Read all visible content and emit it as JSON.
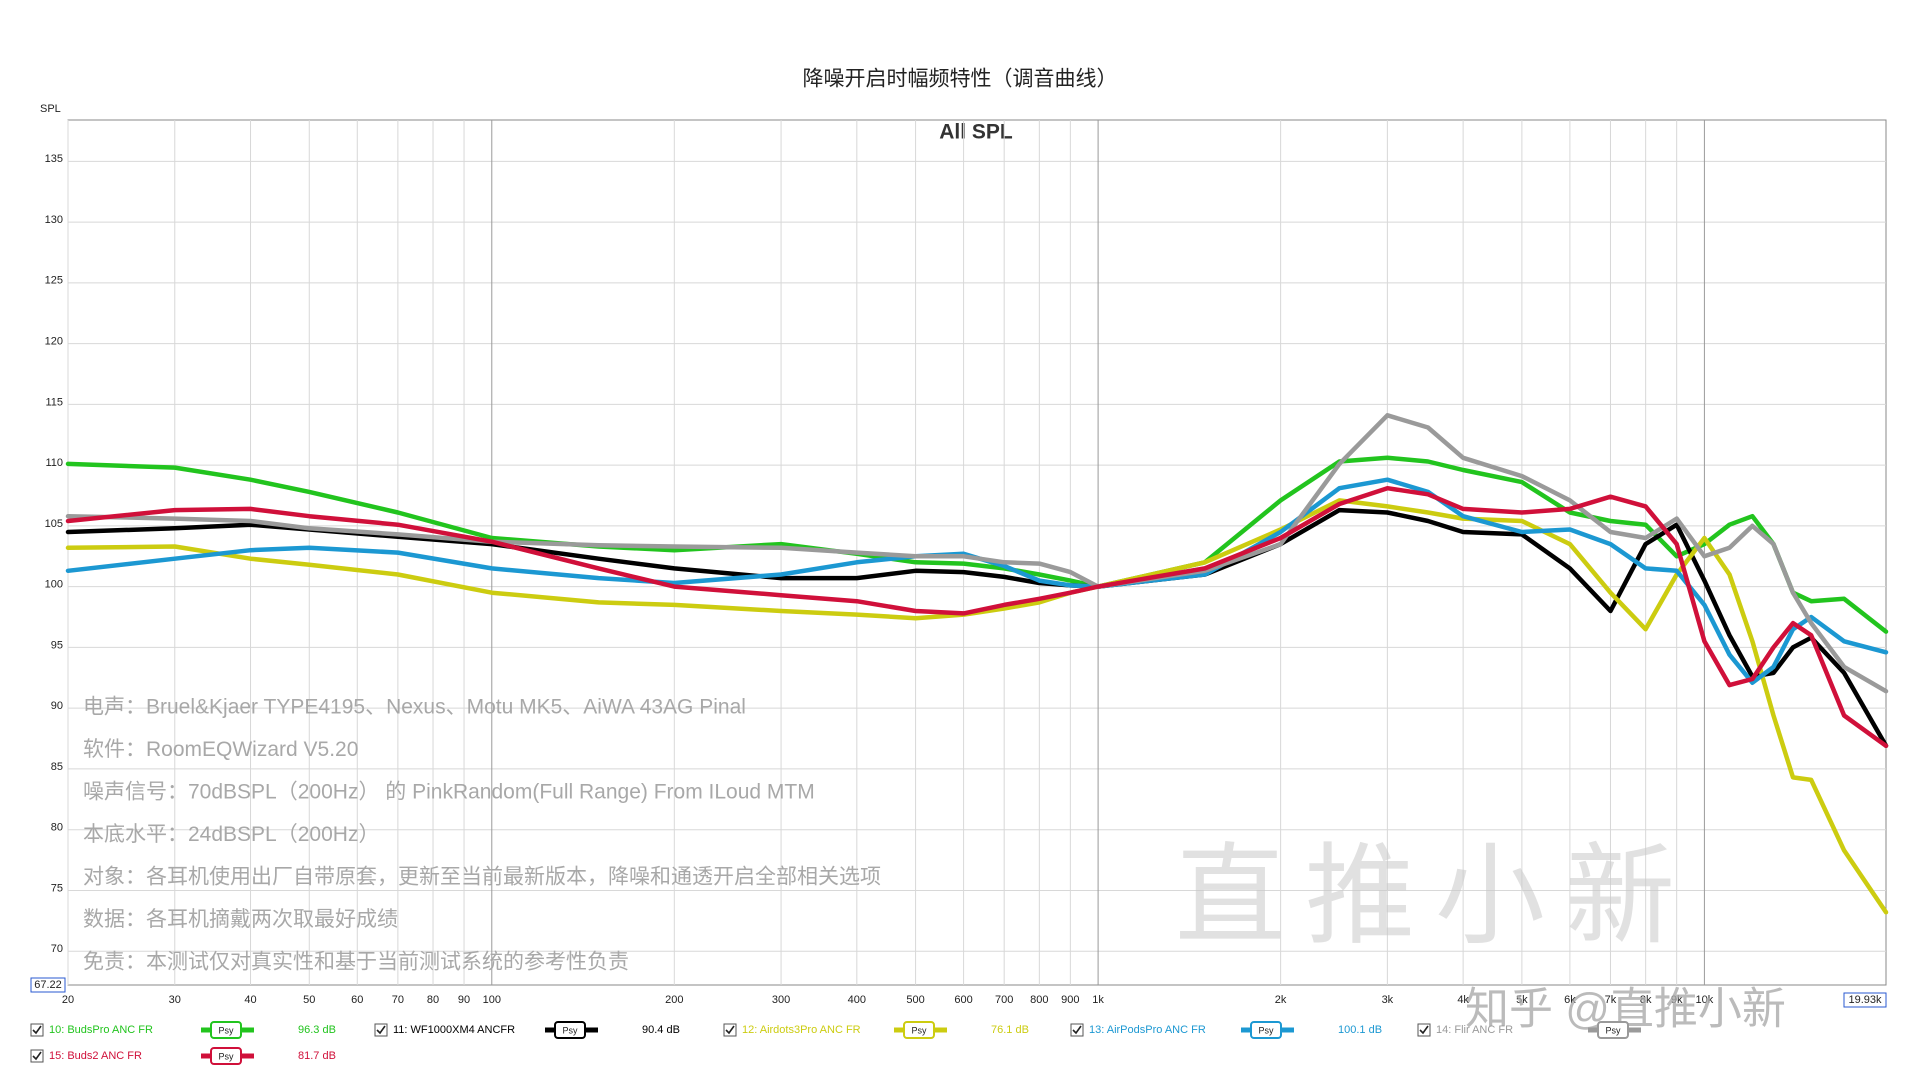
{
  "chart_data": {
    "type": "line",
    "title": "降噪开启时幅频特性（调音曲线）",
    "subtitle": "All SPL",
    "y_label": "SPL",
    "log_x": true,
    "grid": true,
    "xlim": [
      20,
      19930
    ],
    "ylim": [
      67.22,
      138.4
    ],
    "xticks": [
      20,
      30,
      40,
      50,
      60,
      70,
      80,
      90,
      100,
      200,
      300,
      400,
      500,
      600,
      700,
      800,
      900,
      {
        "value": 1000,
        "label": "1k"
      },
      {
        "value": 2000,
        "label": "2k"
      },
      {
        "value": 3000,
        "label": "3k"
      },
      {
        "value": 4000,
        "label": "4k"
      },
      {
        "value": 5000,
        "label": "5k"
      },
      {
        "value": 6000,
        "label": "6k"
      },
      {
        "value": 7000,
        "label": "7k"
      },
      {
        "value": 8000,
        "label": "8k"
      },
      {
        "value": 9000,
        "label": "9k"
      },
      {
        "value": 10000,
        "label": "10k"
      },
      {
        "value": 19930,
        "label": "19.93k"
      }
    ],
    "yticks": [
      67.22,
      70,
      75,
      80,
      85,
      90,
      95,
      100,
      105,
      110,
      115,
      120,
      125,
      130,
      135
    ],
    "x": [
      20,
      30,
      40,
      50,
      70,
      100,
      150,
      200,
      300,
      400,
      500,
      600,
      700,
      800,
      900,
      1000,
      1500,
      2000,
      2500,
      3000,
      3500,
      4000,
      5000,
      6000,
      7000,
      8000,
      9000,
      10000,
      11000,
      12000,
      13000,
      14000,
      15000,
      17000,
      19930
    ],
    "series": [
      {
        "name": "10: BudsPro ANC FR",
        "color": "#22c41e",
        "level": "96.3 dB",
        "values": [
          110.1,
          109.8,
          108.8,
          107.8,
          106.1,
          104.0,
          103.3,
          103.0,
          103.5,
          102.7,
          102.0,
          101.9,
          101.5,
          101.0,
          100.5,
          100.0,
          102.0,
          107.1,
          110.3,
          110.6,
          110.3,
          109.6,
          108.6,
          106.1,
          105.4,
          105.1,
          102.5,
          103.5,
          105.1,
          105.8,
          103.5,
          99.5,
          98.8,
          99.0,
          96.3
        ]
      },
      {
        "name": "11: WF1000XM4 ANCFR",
        "color": "#000000",
        "level": "90.4 dB",
        "values": [
          104.5,
          104.8,
          105.1,
          104.7,
          104.1,
          103.5,
          102.3,
          101.5,
          100.7,
          100.7,
          101.3,
          101.2,
          100.8,
          100.3,
          100.1,
          100.0,
          101.0,
          103.5,
          106.3,
          106.1,
          105.4,
          104.5,
          104.3,
          101.5,
          98.0,
          103.5,
          105.1,
          100.5,
          96.0,
          92.6,
          92.9,
          95.0,
          95.8,
          92.9,
          86.9
        ]
      },
      {
        "name": "12: Airdots3Pro ANC FR",
        "color": "#cccc10",
        "level": "76.1 dB",
        "values": [
          103.2,
          103.3,
          102.3,
          101.8,
          101.0,
          99.5,
          98.7,
          98.5,
          98.0,
          97.7,
          97.4,
          97.7,
          98.2,
          98.7,
          99.5,
          100.0,
          102.0,
          104.7,
          107.1,
          106.6,
          106.1,
          105.6,
          105.4,
          103.5,
          99.5,
          96.5,
          101.0,
          104.0,
          101.0,
          95.5,
          89.4,
          84.3,
          84.1,
          78.3,
          73.2
        ]
      },
      {
        "name": "13: AirPodsPro ANC FR",
        "color": "#1c98d2",
        "level": "100.1 dB",
        "values": [
          101.3,
          102.3,
          103.0,
          103.2,
          102.8,
          101.5,
          100.7,
          100.3,
          101.0,
          102.0,
          102.5,
          102.7,
          101.7,
          100.5,
          100.1,
          100.0,
          101.0,
          104.5,
          108.1,
          108.8,
          107.8,
          105.8,
          104.5,
          104.7,
          103.5,
          101.5,
          101.3,
          98.5,
          94.4,
          92.1,
          93.4,
          96.5,
          97.5,
          95.5,
          94.6
        ]
      },
      {
        "name": "14: Flir ANC FR",
        "color": "#9a9a9a",
        "values": [
          105.8,
          105.6,
          105.4,
          104.8,
          104.3,
          103.7,
          103.4,
          103.3,
          103.2,
          102.8,
          102.5,
          102.5,
          102.0,
          101.9,
          101.2,
          100.0,
          101.3,
          103.5,
          110.1,
          114.1,
          113.1,
          110.6,
          109.1,
          107.1,
          104.5,
          104.0,
          105.6,
          102.5,
          103.2,
          105.0,
          103.5,
          99.5,
          97.0,
          93.4,
          91.4
        ]
      },
      {
        "name": "15: Buds2 ANC FR",
        "color": "#d0103a",
        "level": "81.7 dB",
        "values": [
          105.4,
          106.3,
          106.4,
          105.8,
          105.1,
          103.7,
          101.5,
          100.0,
          99.3,
          98.8,
          98.0,
          97.8,
          98.5,
          99.0,
          99.5,
          100.0,
          101.5,
          104.0,
          106.8,
          108.1,
          107.6,
          106.4,
          106.1,
          106.4,
          107.4,
          106.6,
          103.5,
          95.5,
          91.9,
          92.4,
          95.0,
          97.0,
          96.0,
          89.4,
          86.9
        ]
      }
    ],
    "legend_button": "Psy",
    "notes": [
      "电声：Bruel&Kjaer TYPE4195、Nexus、Motu MK5、AiWA 43AG Pinal",
      "软件：RoomEQWizard V5.20",
      "噪声信号：70dBSPL（200Hz） 的 PinkRandom(Full Range) From ILoud MTM",
      "本底水平：24dBSPL（200Hz）",
      "对象：各耳机使用出厂自带原套，更新至当前最新版本，降噪和通透开启全部相关选项",
      "数据：各耳机摘戴两次取最好成绩",
      "免责：本测试仅对真实性和基于当前测试系统的参考性负责"
    ],
    "watermark": "直推小新",
    "site_watermark": "知乎 @直推小新"
  }
}
